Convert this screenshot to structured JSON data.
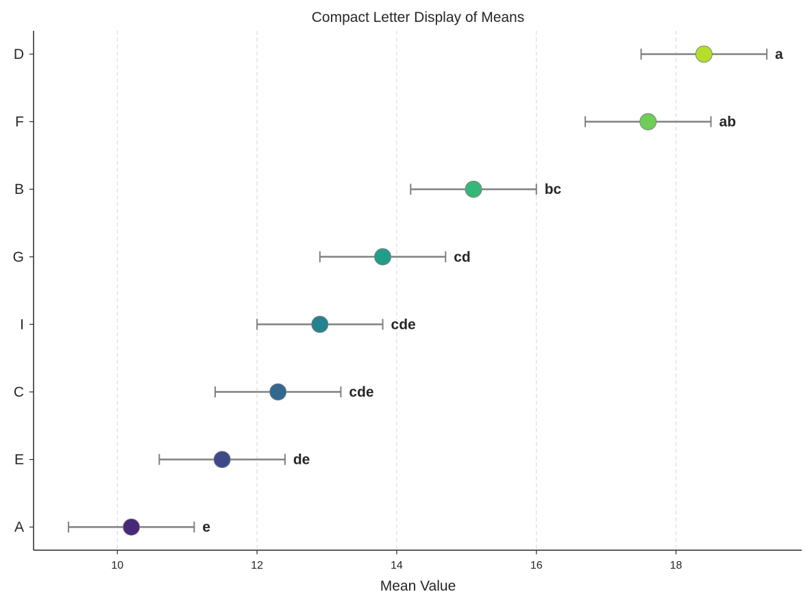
{
  "chart_data": {
    "type": "scatter",
    "title": "Compact Letter Display of Means",
    "xlabel": "Mean Value",
    "ylabel": "",
    "xlim": [
      8.8,
      19.8
    ],
    "xticks": [
      10,
      12,
      14,
      16,
      18
    ],
    "grid": "vertical dashed",
    "legend": "none",
    "categories": [
      "D",
      "F",
      "B",
      "G",
      "I",
      "C",
      "E",
      "A"
    ],
    "means": [
      18.4,
      17.6,
      15.1,
      13.8,
      12.9,
      12.3,
      11.5,
      10.2
    ],
    "ci_low": [
      17.5,
      16.7,
      14.2,
      12.9,
      12.0,
      11.4,
      10.6,
      9.3
    ],
    "ci_high": [
      19.3,
      18.5,
      16.0,
      14.7,
      13.8,
      13.2,
      12.4,
      11.1
    ],
    "letters": [
      "a",
      "ab",
      "bc",
      "cd",
      "cde",
      "cde",
      "de",
      "e"
    ],
    "colors": [
      "#b5de2b",
      "#6ece58",
      "#35b779",
      "#1f9e89",
      "#26828e",
      "#31688e",
      "#3e4989",
      "#482878"
    ],
    "errorbar_color": "#7f7f7f",
    "marker_edge_color": "#7f7f7f"
  }
}
